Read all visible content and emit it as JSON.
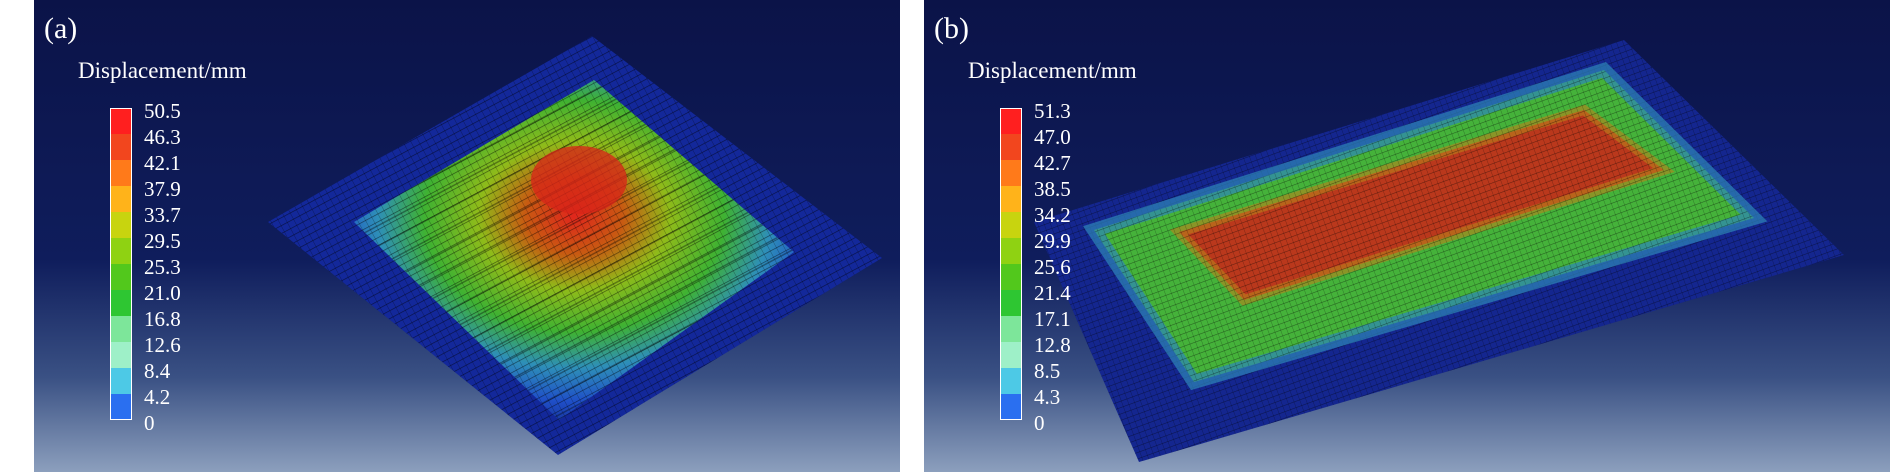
{
  "panels": [
    {
      "label": "(a)",
      "legend_title": "Displacement/mm",
      "ticks": [
        "50.5",
        "46.3",
        "42.1",
        "37.9",
        "33.7",
        "29.5",
        "25.3",
        "21.0",
        "16.8",
        "12.6",
        "8.4",
        "4.2",
        "0"
      ]
    },
    {
      "label": "(b)",
      "legend_title": "Displacement/mm",
      "ticks": [
        "51.3",
        "47.0",
        "42.7",
        "38.5",
        "34.2",
        "29.9",
        "25.6",
        "21.4",
        "17.1",
        "12.8",
        "8.5",
        "4.3",
        "0"
      ]
    }
  ],
  "colors": {
    "legend_scale": [
      "#ff1f1f",
      "#f2461e",
      "#ff7a1a",
      "#ffb31a",
      "#c8d40f",
      "#8fd212",
      "#52c81c",
      "#2ec632",
      "#7de69a",
      "#9ef0c8",
      "#4dc9e6",
      "#2a6ff0",
      "#0b2cf5"
    ],
    "background_top": "#0b1348",
    "background_bottom": "#8c9fbd"
  }
}
